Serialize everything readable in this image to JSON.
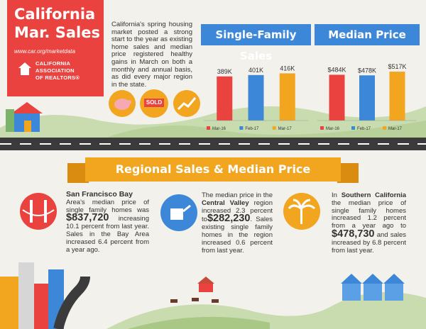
{
  "header": {
    "title_line1": "California",
    "title_line2": "Mar. Sales",
    "url": "www.car.org/marketdata",
    "org_line1": "CALIFORNIA",
    "org_line2": "ASSOCIATION",
    "org_line3": "OF REALTORS®"
  },
  "intro": "California's spring housing market posted a strong start to the year as existing home sales and median price registered healthy gains in March on both a monthly and annual basis, as did every major region in the state.",
  "icons": {
    "sold_label": "SOLD"
  },
  "chart_data": [
    {
      "type": "bar",
      "title": "Single-Family Sales",
      "categories": [
        "Mar-16",
        "Feb-17",
        "Mar-17"
      ],
      "values": [
        389000,
        401000,
        416000
      ],
      "value_labels": [
        "389K",
        "401K",
        "416K"
      ],
      "colors": [
        "#e9423f",
        "#3d87d8",
        "#f2a51f"
      ],
      "ylim": [
        0,
        500000
      ]
    },
    {
      "type": "bar",
      "title": "Median Price",
      "categories": [
        "Mar-16",
        "Feb-17",
        "Mar-17"
      ],
      "values": [
        484000,
        478000,
        517000
      ],
      "value_labels": [
        "$484K",
        "$478K",
        "$517K"
      ],
      "colors": [
        "#e9423f",
        "#3d87d8",
        "#f2a51f"
      ],
      "ylim": [
        0,
        600000
      ]
    }
  ],
  "section_title": "Regional Sales & Median Price",
  "regions": {
    "sf": {
      "heading": "San Francisco Bay",
      "text1": "Area's median price of single family homes was",
      "price": "$837,720",
      "text2": " increasing 10.1 percent from last year. Sales in the Bay Area increased 6.4 percent from a year ago."
    },
    "cv": {
      "text1": "The median price in the ",
      "heading": "Central Valley",
      "text2": " region increased 2.3 percent to",
      "price": "$282,230",
      "text3": ". Sales existing single family homes in the region increased 0.6 percent from last year."
    },
    "sc": {
      "text1": "In ",
      "heading": "Southern California",
      "text2": " the median price of single family homes increased 1.2 percent from a year ago to ",
      "price": "$478,730",
      "text3": " and sales increased by 6.8 percent from last year."
    }
  }
}
